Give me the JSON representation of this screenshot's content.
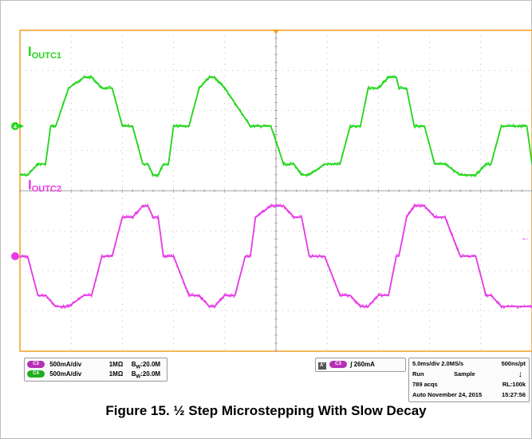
{
  "chart_data": {
    "type": "line",
    "title": "Figure 15. ½ Step Microstepping With Slow Decay",
    "grid": true,
    "series": [
      {
        "name": "IOUTC1",
        "label_main": "I",
        "label_sub": "OUTC1",
        "channel": "C4",
        "color": "#22d61a",
        "volts_per_div": "500mA/div",
        "x": [
          0,
          1.5,
          3.5,
          5,
          6,
          7,
          9.5,
          12.5,
          14,
          16,
          18,
          20,
          22,
          24,
          25,
          26,
          27,
          28,
          29,
          30,
          33,
          35,
          37,
          38,
          40,
          45,
          49,
          51.5,
          53.5,
          55,
          56.5,
          59.5,
          62.5,
          64.5,
          66.5,
          68,
          70,
          72,
          73.5,
          74,
          75.5,
          77,
          79,
          81,
          83,
          86,
          89,
          91,
          92,
          94,
          99,
          100
        ],
        "y": [
          -0.9,
          -0.9,
          -0.7,
          -0.7,
          0,
          0,
          0.7,
          0.9,
          0.9,
          0.7,
          0.7,
          0,
          0,
          -0.7,
          -0.7,
          -0.9,
          -0.9,
          -0.7,
          -0.7,
          0,
          0,
          0.7,
          0.9,
          0.9,
          0.7,
          0,
          0,
          -0.7,
          -0.7,
          -0.9,
          -0.9,
          -0.7,
          -0.7,
          0,
          0,
          0.7,
          0.7,
          0.9,
          0.9,
          0.7,
          0.7,
          0,
          0,
          -0.7,
          -0.7,
          -0.9,
          -0.9,
          -0.7,
          -0.7,
          0,
          0,
          -0.7
        ]
      },
      {
        "name": "IOUTC2",
        "label_main": "I",
        "label_sub": "OUTC2",
        "channel": "C3",
        "color": "#e63be6",
        "volts_per_div": "500mA/div",
        "x": [
          0,
          1.5,
          3.5,
          5,
          7,
          9.5,
          12.5,
          14,
          16,
          18,
          20,
          22,
          24,
          25,
          26,
          27,
          28,
          30,
          33,
          35,
          37,
          38,
          40,
          42,
          44,
          45,
          46,
          49,
          51.5,
          53.5,
          55,
          56.5,
          59.5,
          62.5,
          64.5,
          66.5,
          68,
          70,
          72,
          73.5,
          74,
          75.5,
          77,
          79,
          81,
          83,
          86,
          89,
          91,
          92,
          94,
          99,
          100
        ],
        "y": [
          0,
          0,
          -0.7,
          -0.7,
          -0.9,
          -0.9,
          -0.7,
          -0.7,
          0,
          0,
          0.7,
          0.7,
          0.9,
          0.9,
          0.7,
          0.7,
          0,
          0,
          -0.7,
          -0.7,
          -0.9,
          -0.9,
          -0.7,
          -0.7,
          0,
          0,
          0.7,
          0.9,
          0.9,
          0.7,
          0.7,
          0,
          0,
          -0.7,
          -0.7,
          -0.9,
          -0.9,
          -0.7,
          -0.7,
          0,
          0,
          0.7,
          0.9,
          0.9,
          0.7,
          0.7,
          0,
          0,
          -0.7,
          -0.7,
          -0.9,
          -0.9,
          -0.9
        ]
      }
    ],
    "xlim": [
      0,
      100
    ],
    "ylim": [
      -1,
      1
    ]
  },
  "scope": {
    "channel_panel": {
      "c3": {
        "tag": "C3",
        "scale": "500mA/div",
        "impedance": "1MΩ",
        "bw_prefix": "B",
        "bw_sub": "W",
        "bw_value": ":20.0M"
      },
      "c4": {
        "tag": "C4",
        "scale": "500mA/div",
        "impedance": "1MΩ",
        "bw_prefix": "B",
        "bw_sub": "W",
        "bw_value": ":20.0M"
      }
    },
    "trigger_panel": {
      "mode": "A'",
      "channel": "C3",
      "slope": "∫",
      "level": "260mA"
    },
    "acq_panel": {
      "timebase": "5.0ms/div",
      "rate": "2.0MS/s",
      "resolution": "500ns/pt",
      "state": "Run",
      "mode": "Sample",
      "acqs": "789 acqs",
      "record": "RL:100k",
      "trigger_mode": "Auto",
      "date": "November 24, 2015",
      "time": "15:27:56"
    },
    "markers": {
      "c4_ground": "4",
      "c3_ground": "",
      "arrow_right": "←"
    }
  },
  "colors": {
    "frame": "#f0a020",
    "grid": "#9a9a9a",
    "c3": "#e63be6",
    "c4": "#22d61a"
  }
}
